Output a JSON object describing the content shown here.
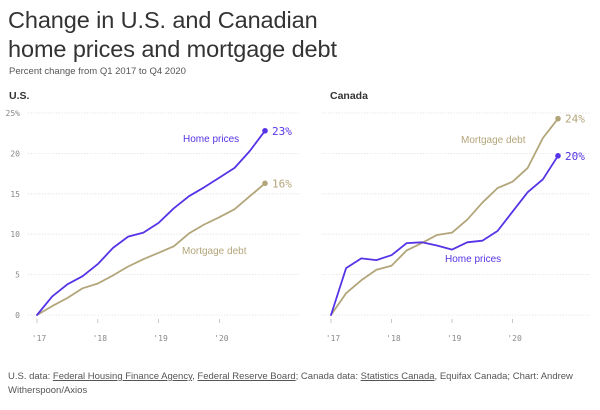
{
  "header": {
    "title_line1": "Change in U.S. and Canadian",
    "title_line2": "home prices and mortgage debt",
    "subtitle": "Percent change from Q1 2017 to Q4 2020"
  },
  "colors": {
    "home_prices": "#5633e6",
    "mortgage_debt": "#b3a57a",
    "axis_text": "#888888",
    "grid": "#dddddd"
  },
  "chart_data": [
    {
      "type": "line",
      "panel_title": "U.S.",
      "title": "Change in U.S. and Canadian home prices and mortgage debt",
      "xlabel": "",
      "ylabel": "",
      "x_range": [
        2017.0,
        2020.75
      ],
      "ylim": [
        0,
        25
      ],
      "y_ticks": [
        {
          "value": 0,
          "label": "0"
        },
        {
          "value": 5,
          "label": "5"
        },
        {
          "value": 10,
          "label": "10"
        },
        {
          "value": 15,
          "label": "15"
        },
        {
          "value": 20,
          "label": "20"
        },
        {
          "value": 25,
          "label": "25%"
        }
      ],
      "x_ticks": [
        {
          "value": 2017.0,
          "label": "'17"
        },
        {
          "value": 2018.0,
          "label": "'18"
        },
        {
          "value": 2019.0,
          "label": "'19"
        },
        {
          "value": 2020.0,
          "label": "'20"
        }
      ],
      "x": [
        2017.0,
        2017.25,
        2017.5,
        2017.75,
        2018.0,
        2018.25,
        2018.5,
        2018.75,
        2019.0,
        2019.25,
        2019.5,
        2019.75,
        2020.0,
        2020.25,
        2020.5,
        2020.75
      ],
      "series": [
        {
          "key": "home_prices",
          "name": "Home prices",
          "values": [
            0,
            2.3,
            3.8,
            4.8,
            6.3,
            8.3,
            9.7,
            10.2,
            11.4,
            13.2,
            14.7,
            15.8,
            17.0,
            18.2,
            20.3,
            22.8
          ],
          "end_label": "23%"
        },
        {
          "key": "mortgage_debt",
          "name": "Mortgage debt",
          "values": [
            0,
            1.1,
            2.1,
            3.3,
            3.9,
            4.9,
            6.0,
            6.9,
            7.7,
            8.5,
            10.1,
            11.2,
            12.1,
            13.1,
            14.7,
            16.3
          ],
          "end_label": "16%"
        }
      ]
    },
    {
      "type": "line",
      "panel_title": "Canada",
      "title": "Change in U.S. and Canadian home prices and mortgage debt",
      "xlabel": "",
      "ylabel": "",
      "x_range": [
        2017.0,
        2020.75
      ],
      "ylim": [
        0,
        25
      ],
      "y_ticks": [
        {
          "value": 0,
          "label": ""
        },
        {
          "value": 5,
          "label": ""
        },
        {
          "value": 10,
          "label": ""
        },
        {
          "value": 15,
          "label": ""
        },
        {
          "value": 20,
          "label": ""
        },
        {
          "value": 25,
          "label": ""
        }
      ],
      "x_ticks": [
        {
          "value": 2017.0,
          "label": "'17"
        },
        {
          "value": 2018.0,
          "label": "'18"
        },
        {
          "value": 2019.0,
          "label": "'19"
        },
        {
          "value": 2020.0,
          "label": "'20"
        }
      ],
      "x": [
        2017.0,
        2017.25,
        2017.5,
        2017.75,
        2018.0,
        2018.25,
        2018.5,
        2018.75,
        2019.0,
        2019.25,
        2019.5,
        2019.75,
        2020.0,
        2020.25,
        2020.5,
        2020.75
      ],
      "series": [
        {
          "key": "home_prices",
          "name": "Home prices",
          "values": [
            0,
            5.8,
            7.0,
            6.8,
            7.4,
            8.9,
            9.0,
            8.6,
            8.1,
            9.0,
            9.2,
            10.4,
            12.8,
            15.2,
            16.8,
            19.7
          ],
          "end_label": "20%"
        },
        {
          "key": "mortgage_debt",
          "name": "Mortgage debt",
          "values": [
            0,
            2.7,
            4.3,
            5.6,
            6.1,
            8.0,
            8.9,
            9.9,
            10.2,
            11.8,
            13.9,
            15.7,
            16.5,
            18.2,
            21.9,
            24.3
          ],
          "end_label": "24%"
        }
      ]
    }
  ],
  "footer": {
    "prefix": "U.S. data: ",
    "fhfa": "Federal Housing Finance Agency",
    "sep1": ", ",
    "fed": "Federal Reserve Board",
    "mid": "; Canada data: ",
    "statcan": "Statistics Canada",
    "suffix": ", Equifax Canada; Chart: Andrew Witherspoon/Axios"
  }
}
